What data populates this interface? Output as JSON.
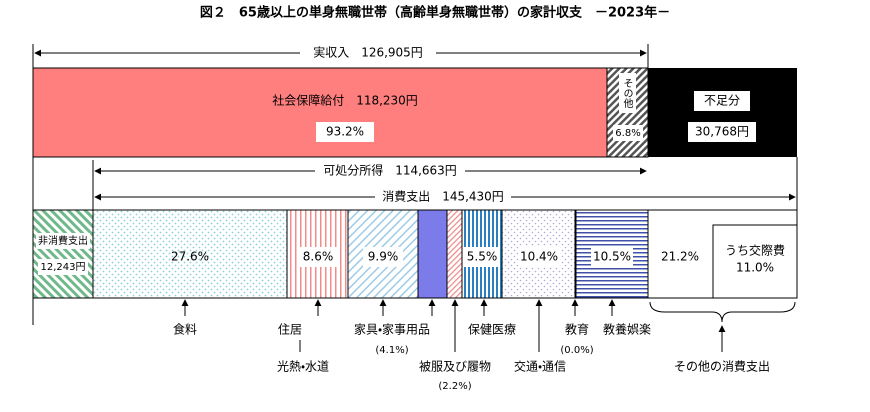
{
  "title": "図２　65歳以上の単身無職世帯（高齢単身無職世帯）の家計収支　－2023年－",
  "income": {
    "total": "実収入　126,905円",
    "social_security": {
      "label": "社会保障給付　118,230円",
      "share": "93.2%"
    },
    "other": {
      "label": "その他",
      "share": "6.8%"
    },
    "deficit": {
      "label": "不足分",
      "amount": "30,768円"
    }
  },
  "disposable_income": "可処分所得　114,663円",
  "consumption_total": "消費支出　145,430円",
  "non_consumption": {
    "label": "非消費支出",
    "amount": "12,243円"
  },
  "spending": {
    "food": {
      "label": "食料",
      "share": "27.6%"
    },
    "housing": {
      "label": "住居",
      "share": "8.6%"
    },
    "utilities": {
      "label": "光熱・水道",
      "share": "9.9%"
    },
    "furniture": {
      "label": "家具・家事用品",
      "share": "(4.1%)"
    },
    "clothing": {
      "label": "被服及び履物",
      "share": "(2.2%)"
    },
    "medical": {
      "label": "保健医療",
      "share": "5.5%"
    },
    "transport": {
      "label": "交通・通信",
      "share": "10.4%"
    },
    "education": {
      "label": "教育",
      "share": "(0.0%)"
    },
    "recreation": {
      "label": "教養娯楽",
      "share": "10.5%"
    },
    "other": {
      "label": "その他の消費支出",
      "share": "21.2%",
      "social_label": "うち交際費",
      "social_share": "11.0%"
    }
  }
}
